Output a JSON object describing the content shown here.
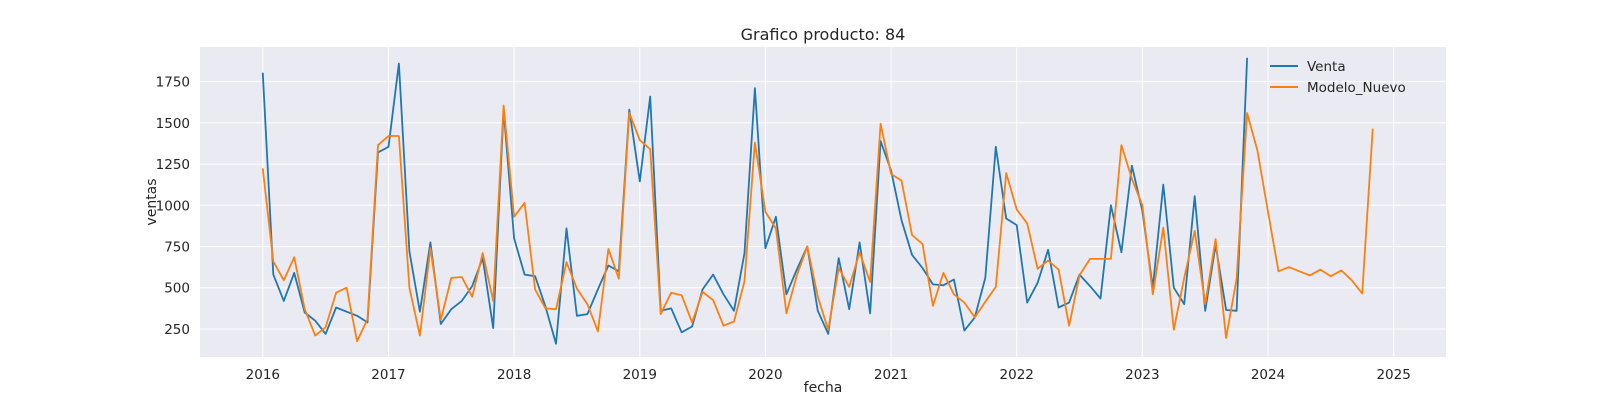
{
  "chart_data": {
    "type": "line",
    "title": "Grafico producto: 84",
    "xlabel": "fecha",
    "ylabel": "ventas",
    "x_axis": "monthly dates",
    "xlim": [
      "2015-07",
      "2025-06"
    ],
    "ylim": [
      80,
      1960
    ],
    "x_ticks": [
      "2016",
      "2017",
      "2018",
      "2019",
      "2020",
      "2021",
      "2022",
      "2023",
      "2024",
      "2025"
    ],
    "y_ticks": [
      250,
      500,
      750,
      1000,
      1250,
      1500,
      1750
    ],
    "y_tick_labels": [
      "250",
      "500",
      "750",
      "1000",
      "1250",
      "1500",
      "1750"
    ],
    "grid": true,
    "background": "#eaeaf2",
    "legend_position": "top-right",
    "series": [
      {
        "name": "Venta",
        "color": "#1f77b4",
        "start": "2016-01",
        "values": [
          1800,
          580,
          420,
          590,
          350,
          300,
          220,
          380,
          355,
          330,
          290,
          1320,
          1355,
          1860,
          720,
          355,
          775,
          280,
          370,
          420,
          510,
          680,
          255,
          1580,
          800,
          580,
          570,
          385,
          160,
          860,
          330,
          340,
          490,
          635,
          600,
          1580,
          1145,
          1660,
          360,
          375,
          230,
          265,
          490,
          580,
          460,
          360,
          710,
          1710,
          740,
          930,
          460,
          610,
          750,
          360,
          220,
          680,
          370,
          775,
          345,
          1390,
          1210,
          910,
          700,
          620,
          520,
          515,
          550,
          240,
          320,
          560,
          1355,
          920,
          880,
          410,
          530,
          730,
          380,
          410,
          580,
          510,
          435,
          1000,
          715,
          1240,
          965,
          500,
          1125,
          500,
          400,
          1055,
          360,
          760,
          365,
          360,
          1890
        ]
      },
      {
        "name": "Modelo_Nuevo",
        "color": "#ff7f0e",
        "start": "2016-01",
        "values": [
          1220,
          660,
          545,
          685,
          370,
          210,
          260,
          470,
          500,
          175,
          310,
          1365,
          1420,
          1420,
          500,
          210,
          740,
          305,
          560,
          565,
          445,
          710,
          420,
          1605,
          930,
          1015,
          490,
          375,
          370,
          655,
          495,
          400,
          235,
          735,
          555,
          1560,
          1395,
          1340,
          340,
          470,
          455,
          290,
          475,
          425,
          270,
          295,
          540,
          1380,
          960,
          860,
          345,
          575,
          750,
          445,
          245,
          620,
          505,
          715,
          535,
          1495,
          1190,
          1150,
          820,
          765,
          390,
          590,
          460,
          410,
          320,
          415,
          505,
          1195,
          975,
          890,
          615,
          665,
          610,
          270,
          575,
          675,
          675,
          675,
          1365,
          1160,
          1000,
          460,
          865,
          245,
          560,
          845,
          400,
          795,
          195,
          555,
          1560,
          1330,
          960,
          600,
          625,
          600,
          575,
          610,
          570,
          605,
          545,
          465,
          1460
        ]
      }
    ]
  }
}
